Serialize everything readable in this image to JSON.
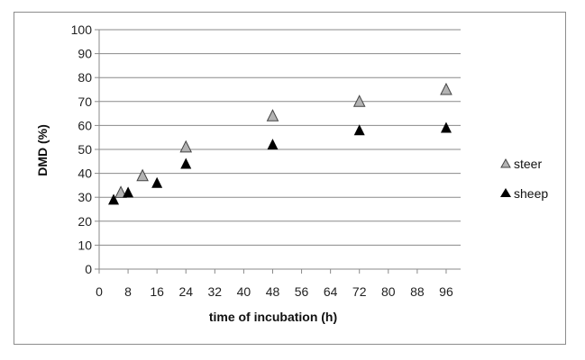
{
  "chart_data": {
    "type": "scatter",
    "title": "",
    "xlabel": "time of incubation (h)",
    "ylabel": "DMD (%)",
    "xlim": [
      0,
      100
    ],
    "ylim": [
      0,
      100
    ],
    "x_ticks": [
      "0",
      "8",
      "16",
      "24",
      "32",
      "40",
      "48",
      "56",
      "64",
      "72",
      "80",
      "88",
      "96"
    ],
    "y_ticks": [
      "0",
      "10",
      "20",
      "30",
      "40",
      "50",
      "60",
      "70",
      "80",
      "90",
      "100"
    ],
    "grid": "horizontal",
    "legend_position": "right",
    "series": [
      {
        "name": "steer",
        "marker": "triangle",
        "color": "#b3b3b3",
        "points": [
          {
            "x": 6,
            "y": 32
          },
          {
            "x": 12,
            "y": 39
          },
          {
            "x": 24,
            "y": 51
          },
          {
            "x": 48,
            "y": 64
          },
          {
            "x": 72,
            "y": 70
          },
          {
            "x": 96,
            "y": 75
          }
        ]
      },
      {
        "name": "sheep",
        "marker": "triangle",
        "color": "#000000",
        "points": [
          {
            "x": 4,
            "y": 29
          },
          {
            "x": 8,
            "y": 32
          },
          {
            "x": 16,
            "y": 36
          },
          {
            "x": 24,
            "y": 44
          },
          {
            "x": 48,
            "y": 52
          },
          {
            "x": 72,
            "y": 58
          },
          {
            "x": 96,
            "y": 59
          }
        ]
      }
    ]
  }
}
